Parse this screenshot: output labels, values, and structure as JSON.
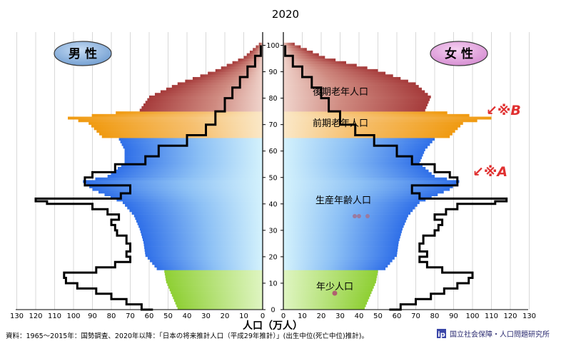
{
  "chart_data": {
    "type": "population-pyramid",
    "title": "2020",
    "xlabel": "人口（万人）",
    "x_axis_ticks": [
      130,
      120,
      110,
      100,
      90,
      80,
      70,
      60,
      50,
      40,
      30,
      20,
      10,
      0
    ],
    "age_axis_ticks": [
      0,
      10,
      20,
      30,
      40,
      50,
      60,
      70,
      80,
      90,
      100
    ],
    "xlim": [
      0,
      130
    ],
    "ylim": [
      0,
      105
    ],
    "male_label": "男 性",
    "female_label": "女 性",
    "segments": [
      {
        "name": "年少人口",
        "age_from": 0,
        "age_to": 14,
        "color": "#9bd84a"
      },
      {
        "name": "生産年齢人口",
        "age_from": 15,
        "age_to": 64,
        "color": "#4a86f0"
      },
      {
        "name": "前期老年人口",
        "age_from": 65,
        "age_to": 74,
        "color": "#f0a020"
      },
      {
        "name": "後期老年人口",
        "age_from": 75,
        "age_to": 105,
        "color": "#b04a4a"
      }
    ],
    "annotations": [
      "↙※B",
      "↙※A"
    ],
    "male_bars_by_age": [
      [
        0,
        45
      ],
      [
        5,
        48
      ],
      [
        10,
        51
      ],
      [
        14,
        52
      ],
      [
        15,
        56
      ],
      [
        20,
        62
      ],
      [
        25,
        63
      ],
      [
        30,
        65
      ],
      [
        35,
        68
      ],
      [
        40,
        74
      ],
      [
        45,
        90
      ],
      [
        48,
        95
      ],
      [
        50,
        82
      ],
      [
        55,
        73
      ],
      [
        60,
        73
      ],
      [
        64,
        76
      ],
      [
        65,
        85
      ],
      [
        70,
        92
      ],
      [
        72,
        103
      ],
      [
        75,
        65
      ],
      [
        80,
        60
      ],
      [
        85,
        45
      ],
      [
        90,
        25
      ],
      [
        95,
        10
      ],
      [
        100,
        2
      ]
    ],
    "female_bars_by_age": [
      [
        0,
        43
      ],
      [
        5,
        46
      ],
      [
        10,
        49
      ],
      [
        14,
        50
      ],
      [
        15,
        54
      ],
      [
        20,
        60
      ],
      [
        25,
        61
      ],
      [
        30,
        63
      ],
      [
        35,
        66
      ],
      [
        40,
        72
      ],
      [
        45,
        88
      ],
      [
        48,
        93
      ],
      [
        50,
        80
      ],
      [
        55,
        72
      ],
      [
        60,
        75
      ],
      [
        64,
        80
      ],
      [
        65,
        88
      ],
      [
        70,
        95
      ],
      [
        72,
        110
      ],
      [
        75,
        75
      ],
      [
        80,
        78
      ],
      [
        85,
        70
      ],
      [
        90,
        50
      ],
      [
        95,
        22
      ],
      [
        100,
        6
      ]
    ],
    "series": [
      {
        "name": "男性 (1965)",
        "points": [
          [
            0,
            58
          ],
          [
            2,
            64
          ],
          [
            4,
            72
          ],
          [
            6,
            80
          ],
          [
            8,
            88
          ],
          [
            10,
            98
          ],
          [
            12,
            104
          ],
          [
            14,
            105
          ],
          [
            16,
            88
          ],
          [
            18,
            78
          ],
          [
            20,
            70
          ],
          [
            22,
            72
          ],
          [
            25,
            70
          ],
          [
            28,
            72
          ],
          [
            30,
            77
          ],
          [
            32,
            78
          ],
          [
            34,
            80
          ],
          [
            36,
            76
          ],
          [
            38,
            82
          ],
          [
            40,
            90
          ],
          [
            41,
            114
          ],
          [
            42,
            120
          ],
          [
            44,
            75
          ],
          [
            47,
            70
          ],
          [
            50,
            94
          ],
          [
            52,
            90
          ],
          [
            55,
            78
          ],
          [
            58,
            62
          ],
          [
            62,
            55
          ],
          [
            66,
            40
          ],
          [
            70,
            30
          ],
          [
            75,
            25
          ],
          [
            80,
            20
          ],
          [
            84,
            16
          ],
          [
            88,
            12
          ],
          [
            92,
            8
          ],
          [
            96,
            4
          ],
          [
            100,
            1
          ]
        ]
      },
      {
        "name": "女性 (1965)",
        "points": [
          [
            0,
            56
          ],
          [
            2,
            62
          ],
          [
            4,
            70
          ],
          [
            6,
            78
          ],
          [
            8,
            85
          ],
          [
            10,
            92
          ],
          [
            12,
            98
          ],
          [
            14,
            100
          ],
          [
            16,
            84
          ],
          [
            18,
            76
          ],
          [
            20,
            72
          ],
          [
            22,
            76
          ],
          [
            25,
            72
          ],
          [
            28,
            74
          ],
          [
            30,
            80
          ],
          [
            32,
            82
          ],
          [
            34,
            84
          ],
          [
            36,
            80
          ],
          [
            38,
            86
          ],
          [
            40,
            92
          ],
          [
            41,
            112
          ],
          [
            42,
            118
          ],
          [
            44,
            72
          ],
          [
            47,
            68
          ],
          [
            50,
            92
          ],
          [
            52,
            88
          ],
          [
            55,
            80
          ],
          [
            58,
            68
          ],
          [
            62,
            60
          ],
          [
            66,
            48
          ],
          [
            70,
            38
          ],
          [
            75,
            30
          ],
          [
            80,
            24
          ],
          [
            84,
            20
          ],
          [
            88,
            15
          ],
          [
            92,
            10
          ],
          [
            96,
            5
          ],
          [
            100,
            1
          ]
        ]
      }
    ]
  },
  "source_note": "資料：1965～2015年：国勢調査、2020年以降：「日本の将来推計人口（平成29年推計）」(出生中位(死亡中位)推計)。",
  "logo_text": "国立社会保障・人口問題研究所"
}
